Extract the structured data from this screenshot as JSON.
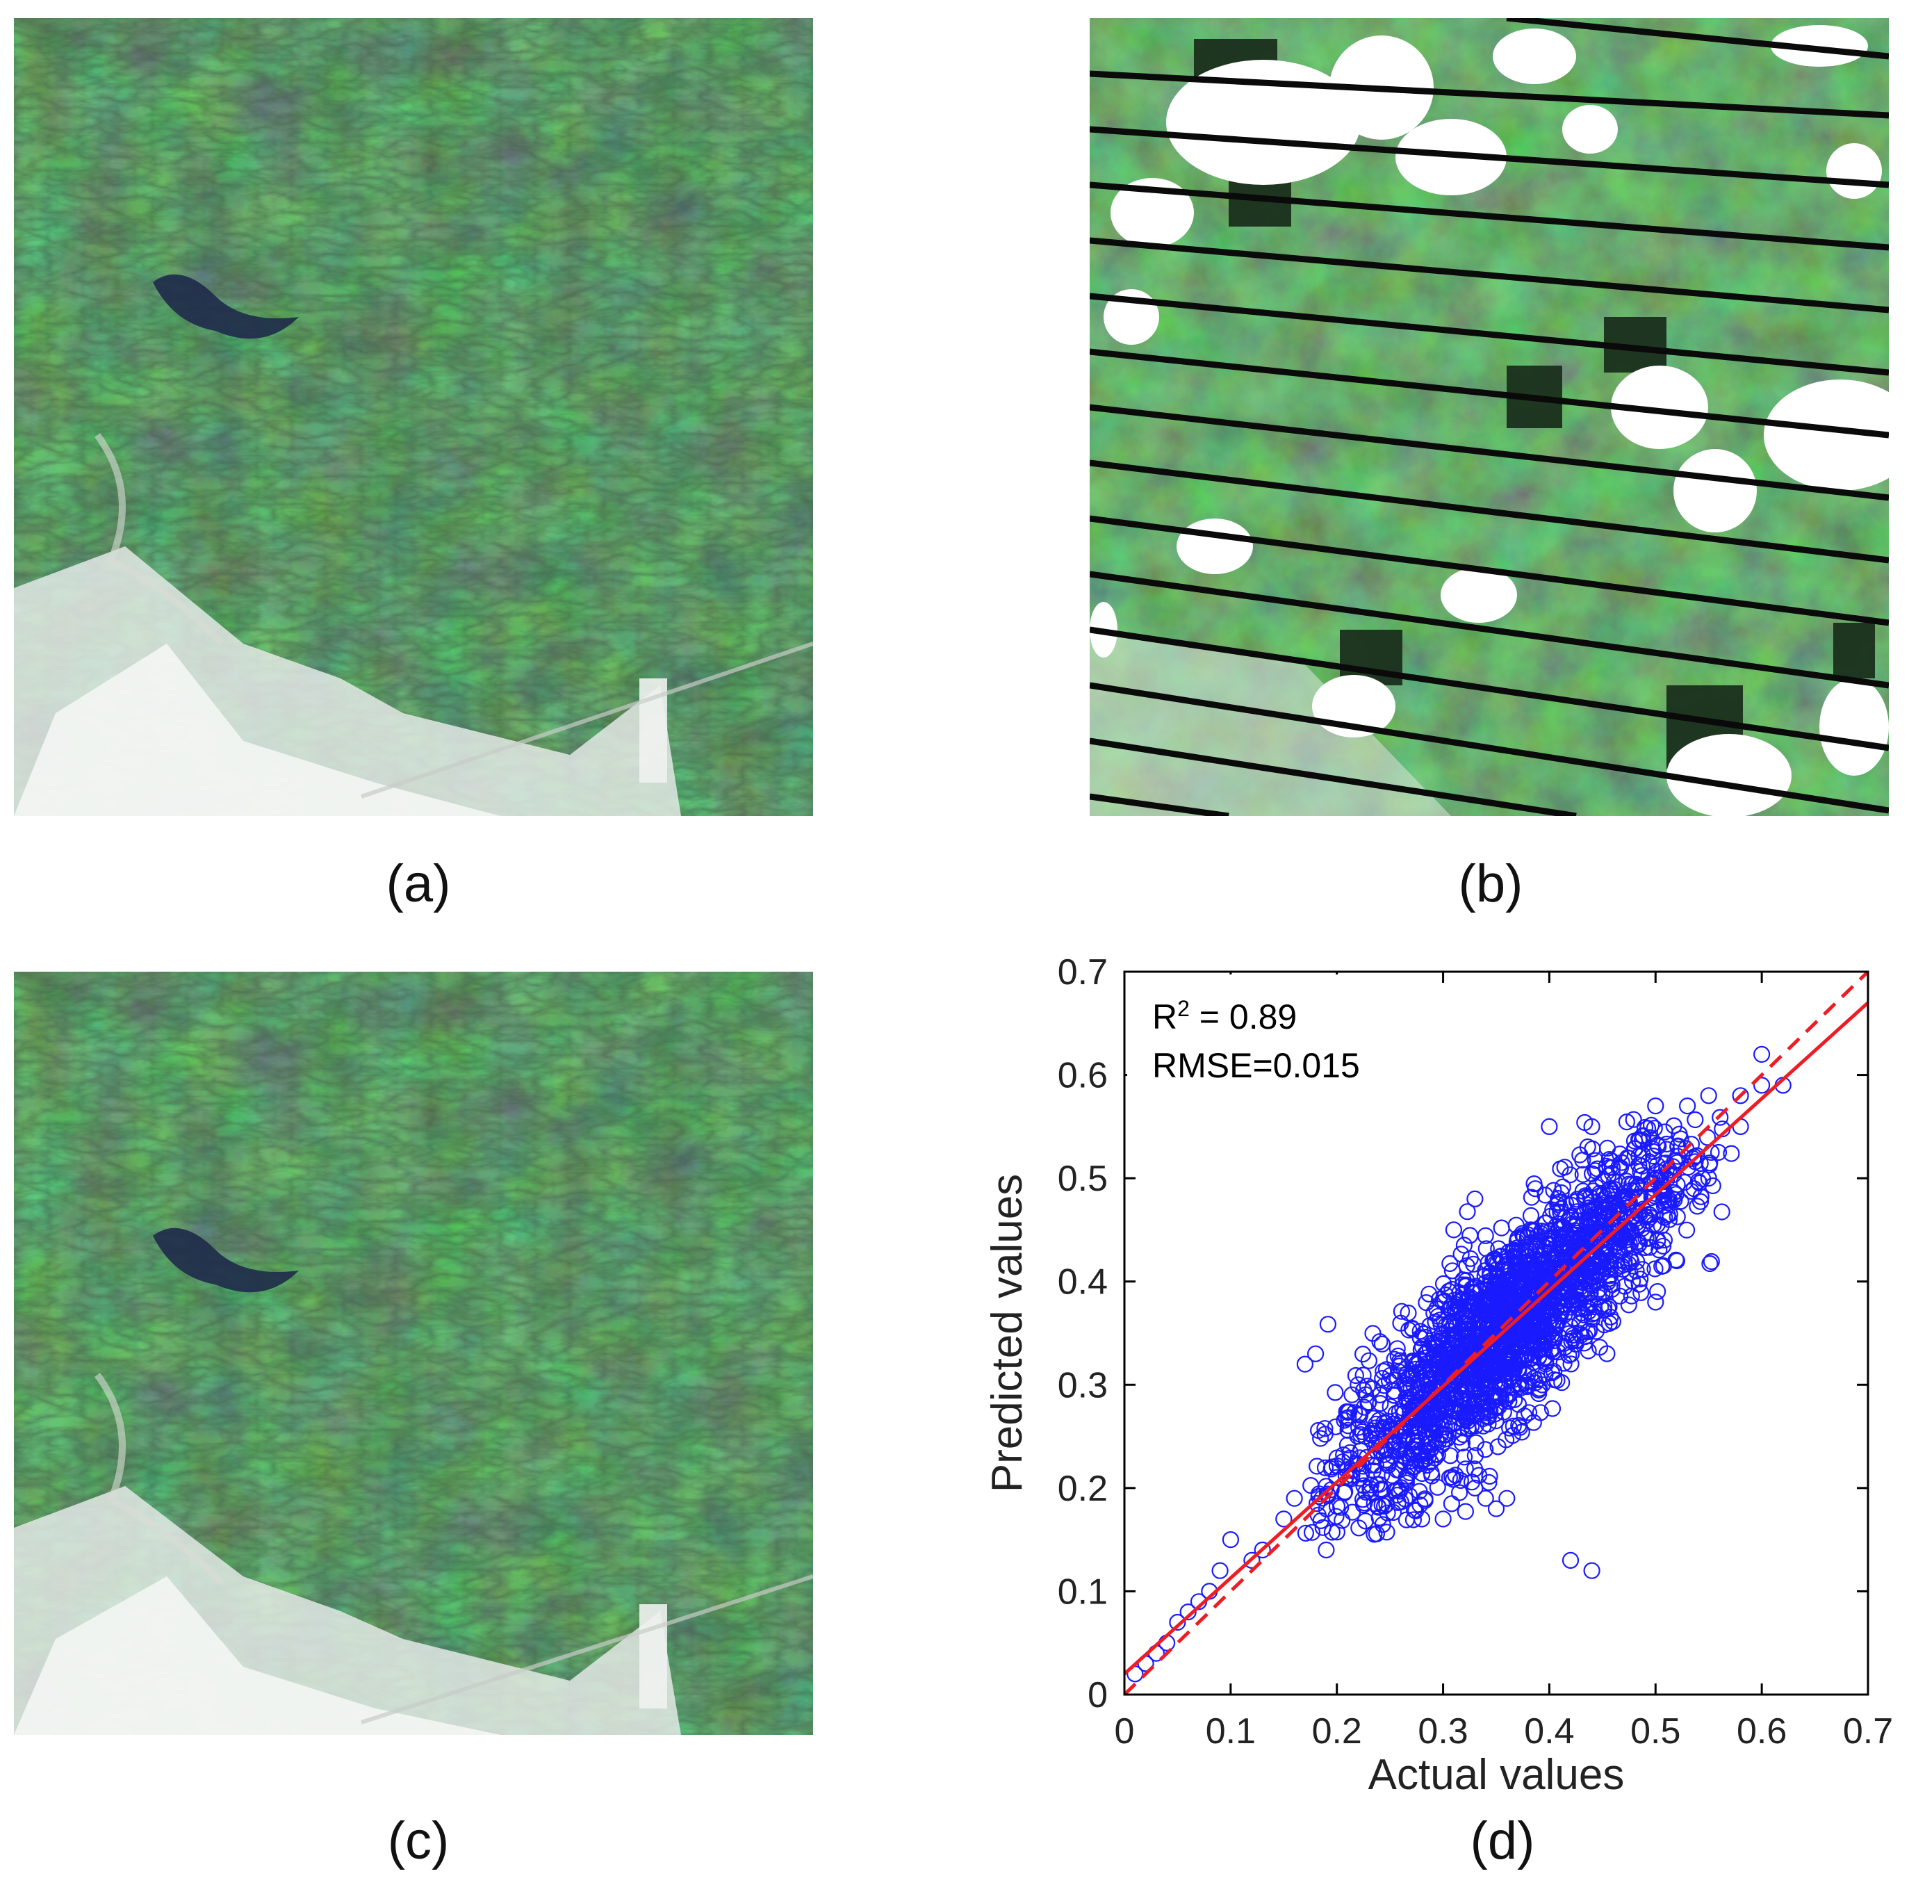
{
  "captions": {
    "a": "(a)",
    "b": "(b)",
    "c": "(c)",
    "d": "(d)"
  },
  "colors": {
    "vegetation_dark": "#1d3a1f",
    "vegetation_mid": "#3f6b35",
    "vegetation_light": "#6d9a52",
    "urban": "#e8ecea",
    "water": "#1f2a4a",
    "cloud": "#ffffff",
    "stripe": "#0a0a0a",
    "scatter_points": "#1a1aff",
    "fit_line": "#ee1c25"
  },
  "chart_data": {
    "type": "scatter",
    "xlabel": "Actual values",
    "ylabel": "Predicted values",
    "xlim": [
      0,
      0.7
    ],
    "ylim": [
      0,
      0.7
    ],
    "xticks": [
      0,
      0.1,
      0.2,
      0.3,
      0.4,
      0.5,
      0.6,
      0.7
    ],
    "yticks": [
      0,
      0.1,
      0.2,
      0.3,
      0.4,
      0.5,
      0.6,
      0.7
    ],
    "xtick_labels": [
      "0",
      "0.1",
      "0.2",
      "0.3",
      "0.4",
      "0.5",
      "0.6",
      "0.7"
    ],
    "ytick_labels": [
      "0",
      "0.1",
      "0.2",
      "0.3",
      "0.4",
      "0.5",
      "0.6",
      "0.7"
    ],
    "annotations": {
      "r2_prefix": "R",
      "r2_sup": "2",
      "r2_suffix": " = 0.89",
      "rmse": "RMSE=0.015"
    },
    "r2": 0.89,
    "rmse": 0.015,
    "marker": "open-circle",
    "fit_line": {
      "style": "solid",
      "x": [
        0,
        0.7
      ],
      "y": [
        0.02,
        0.67
      ]
    },
    "identity_line": {
      "style": "dashed",
      "x": [
        0,
        0.7
      ],
      "y": [
        0,
        0.7
      ]
    },
    "outliers": [
      [
        0.01,
        0.02
      ],
      [
        0.02,
        0.03
      ],
      [
        0.03,
        0.04
      ],
      [
        0.04,
        0.05
      ],
      [
        0.05,
        0.07
      ],
      [
        0.06,
        0.08
      ],
      [
        0.07,
        0.09
      ],
      [
        0.08,
        0.1
      ],
      [
        0.09,
        0.12
      ],
      [
        0.1,
        0.15
      ],
      [
        0.12,
        0.13
      ],
      [
        0.13,
        0.14
      ],
      [
        0.15,
        0.17
      ],
      [
        0.16,
        0.19
      ],
      [
        0.17,
        0.32
      ],
      [
        0.18,
        0.33
      ],
      [
        0.19,
        0.14
      ],
      [
        0.22,
        0.3
      ],
      [
        0.28,
        0.17
      ],
      [
        0.3,
        0.17
      ],
      [
        0.32,
        0.23
      ],
      [
        0.33,
        0.2
      ],
      [
        0.34,
        0.19
      ],
      [
        0.35,
        0.18
      ],
      [
        0.36,
        0.19
      ],
      [
        0.3,
        0.38
      ],
      [
        0.31,
        0.45
      ],
      [
        0.33,
        0.48
      ],
      [
        0.4,
        0.55
      ],
      [
        0.44,
        0.55
      ],
      [
        0.42,
        0.13
      ],
      [
        0.44,
        0.12
      ],
      [
        0.5,
        0.57
      ],
      [
        0.53,
        0.57
      ],
      [
        0.55,
        0.58
      ],
      [
        0.58,
        0.58
      ],
      [
        0.6,
        0.59
      ],
      [
        0.62,
        0.59
      ],
      [
        0.6,
        0.62
      ],
      [
        0.58,
        0.55
      ],
      [
        0.55,
        0.5
      ],
      [
        0.52,
        0.42
      ],
      [
        0.5,
        0.38
      ]
    ],
    "cloud": {
      "x_mean": 0.36,
      "y_mean": 0.365,
      "x_sd": 0.085,
      "y_sd_along": 0.08,
      "y_sd_across": 0.045,
      "x_range": [
        0.17,
        0.58
      ],
      "y_range": [
        0.15,
        0.56
      ],
      "n": 2200
    }
  }
}
